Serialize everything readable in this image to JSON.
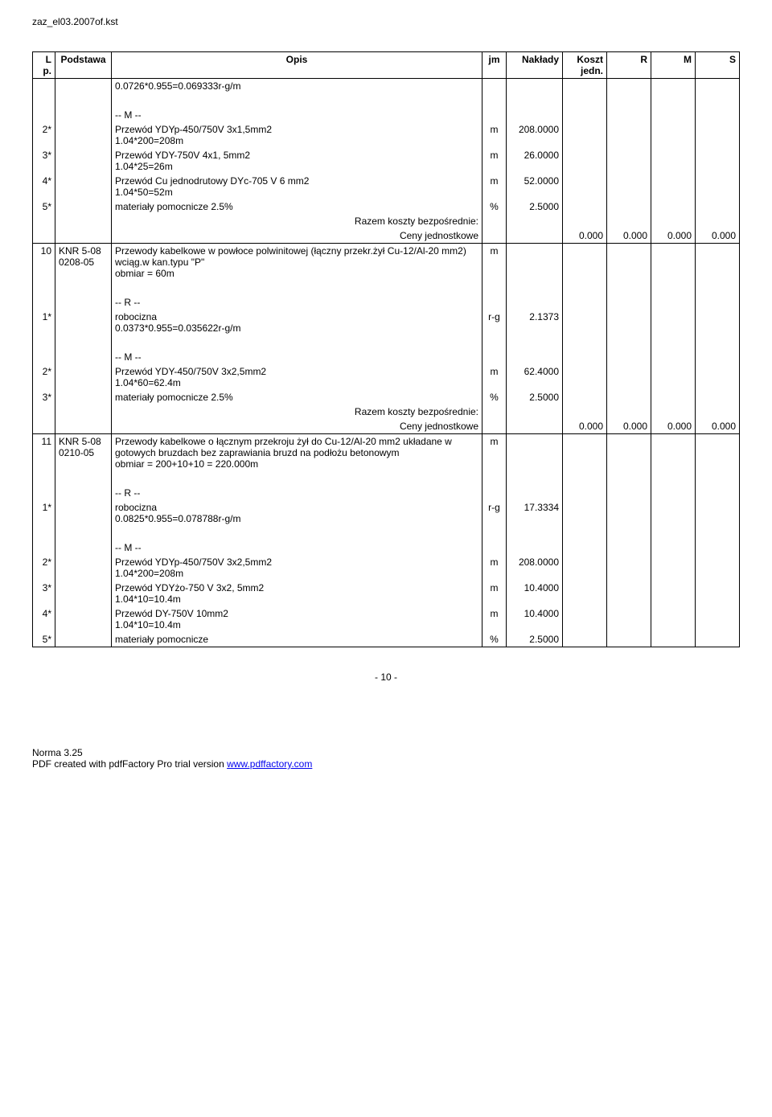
{
  "doc_title": "zaz_el03.2007of.kst",
  "headers": {
    "lp": "L p.",
    "pod": "Podstawa",
    "opis": "Opis",
    "jm": "jm",
    "nak": "Nakłady",
    "koszt": "Koszt jedn.",
    "r": "R",
    "m": "M",
    "s": "S"
  },
  "row_top": "0.0726*0.955=0.069333r-g/m",
  "blockA": {
    "m_label": "-- M --",
    "r2": {
      "lp": "2*",
      "opis": "Przewód YDYp-450/750V 3x1,5mm2\n1.04*200=208m",
      "jm": "m",
      "nak": "208.0000"
    },
    "r3": {
      "lp": "3*",
      "opis": "Przewód YDY-750V 4x1, 5mm2\n1.04*25=26m",
      "jm": "m",
      "nak": "26.0000"
    },
    "r4": {
      "lp": "4*",
      "opis": "Przewód Cu jednodrutowy DYc-705 V 6 mm2\n1.04*50=52m",
      "jm": "m",
      "nak": "52.0000"
    },
    "r5": {
      "lp": "5*",
      "opis": "materiały pomocnicze 2.5%",
      "jm": "%",
      "nak": "2.5000"
    },
    "razem": "Razem koszty bezpośrednie:",
    "ceny": "Ceny jednostkowe",
    "koszt": "0.000",
    "r": "0.000",
    "m": "0.000",
    "s": "0.000"
  },
  "row10": {
    "lp": "10",
    "pod": "KNR 5-08 0208-05",
    "opis": "Przewody kabelkowe w powłoce polwinitowej (łączny przekr.żył Cu-12/Al-20 mm2) wciąg.w kan.typu \"P\"\nobmiar = 60m",
    "jm": "m"
  },
  "blockB": {
    "r_label": "-- R --",
    "r1": {
      "lp": "1*",
      "opis": "robocizna\n0.0373*0.955=0.035622r-g/m",
      "jm": "r-g",
      "nak": "2.1373"
    },
    "m_label": "-- M --",
    "r2": {
      "lp": "2*",
      "opis": "Przewód YDY-450/750V 3x2,5mm2\n1.04*60=62.4m",
      "jm": "m",
      "nak": "62.4000"
    },
    "r3": {
      "lp": "3*",
      "opis": "materiały pomocnicze 2.5%",
      "jm": "%",
      "nak": "2.5000"
    },
    "razem": "Razem koszty bezpośrednie:",
    "ceny": "Ceny jednostkowe",
    "koszt": "0.000",
    "r": "0.000",
    "m": "0.000",
    "s": "0.000"
  },
  "row11": {
    "lp": "11",
    "pod": "KNR 5-08 0210-05",
    "opis": "Przewody kabelkowe o łącznym przekroju żył do Cu-12/Al-20 mm2 układane w gotowych bruzdach bez zaprawiania bruzd na podłożu betonowym\nobmiar = 200+10+10 = 220.000m",
    "jm": "m"
  },
  "blockC": {
    "r_label": "-- R --",
    "r1": {
      "lp": "1*",
      "opis": "robocizna\n0.0825*0.955=0.078788r-g/m",
      "jm": "r-g",
      "nak": "17.3334"
    },
    "m_label": "-- M --",
    "r2": {
      "lp": "2*",
      "opis": "Przewód YDYp-450/750V 3x2,5mm2\n1.04*200=208m",
      "jm": "m",
      "nak": "208.0000"
    },
    "r3": {
      "lp": "3*",
      "opis": "Przewód YDYżo-750 V 3x2, 5mm2\n1.04*10=10.4m",
      "jm": "m",
      "nak": "10.4000"
    },
    "r4": {
      "lp": "4*",
      "opis": "Przewód DY-750V 10mm2\n1.04*10=10.4m",
      "jm": "m",
      "nak": "10.4000"
    },
    "r5": {
      "lp": "5*",
      "opis": "materiały pomocnicze",
      "jm": "%",
      "nak": "2.5000"
    }
  },
  "page_num": "- 10 -",
  "footer_norma": "Norma 3.25",
  "footer_pdf": "PDF created with pdfFactory Pro trial version ",
  "footer_link": "www.pdffactory.com"
}
